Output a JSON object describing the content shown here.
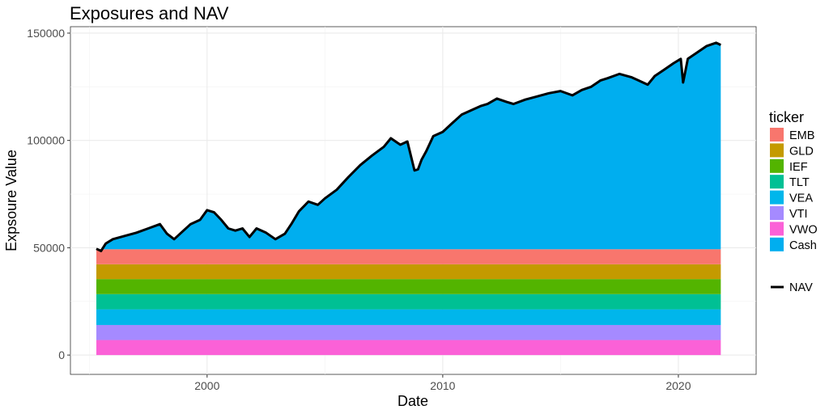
{
  "chart_data": {
    "type": "area",
    "title": "Exposures and NAV",
    "xlabel": "Date",
    "ylabel": "Expsoure Value",
    "xlim": [
      1994.2,
      2023.3
    ],
    "ylim": [
      -9000,
      153000
    ],
    "x_ticks": [
      2000,
      2010,
      2020
    ],
    "x_tick_labels": [
      "2000",
      "2010",
      "2020"
    ],
    "y_ticks": [
      0,
      50000,
      100000,
      150000
    ],
    "y_tick_labels": [
      "0",
      "50000",
      "100000",
      "150000"
    ],
    "grid": true,
    "legend": {
      "position": "right",
      "title": "ticker",
      "entries": [
        "EMB",
        "GLD",
        "IEF",
        "TLT",
        "VEA",
        "VTI",
        "VWO",
        "Cash"
      ],
      "colors": [
        "#F8766D",
        "#C49A00",
        "#53B400",
        "#00C094",
        "#00B6EB",
        "#A58AFF",
        "#FB61D7",
        "#00AEEF"
      ],
      "line_entry": "NAV"
    },
    "x_range": [
      1995.3,
      2021.8
    ],
    "stacked_series": [
      {
        "name": "VWO",
        "value": 7000,
        "color": "#FB61D7"
      },
      {
        "name": "VTI",
        "value": 7000,
        "color": "#A58AFF"
      },
      {
        "name": "VEA",
        "value": 7300,
        "color": "#00B6EB"
      },
      {
        "name": "TLT",
        "value": 7100,
        "color": "#00C094"
      },
      {
        "name": "IEF",
        "value": 7000,
        "color": "#53B400"
      },
      {
        "name": "GLD",
        "value": 6900,
        "color": "#C49A00"
      },
      {
        "name": "EMB",
        "value": 7000,
        "color": "#F8766D"
      }
    ],
    "cash_color": "#00AEEF",
    "nav_color": "#000000",
    "nav": {
      "x": [
        1995.3,
        1995.5,
        1995.7,
        1996.0,
        1996.5,
        1997.0,
        1997.5,
        1998.0,
        1998.3,
        1998.6,
        1998.9,
        1999.3,
        1999.7,
        2000.0,
        2000.3,
        2000.6,
        2000.9,
        2001.2,
        2001.5,
        2001.8,
        2002.1,
        2002.5,
        2002.9,
        2003.3,
        2003.6,
        2003.9,
        2004.3,
        2004.7,
        2005.0,
        2005.5,
        2006.0,
        2006.5,
        2007.0,
        2007.5,
        2007.8,
        2008.2,
        2008.5,
        2008.8,
        2008.95,
        2009.1,
        2009.3,
        2009.6,
        2010.0,
        2010.4,
        2010.8,
        2011.2,
        2011.6,
        2011.9,
        2012.3,
        2012.7,
        2013.0,
        2013.5,
        2014.0,
        2014.5,
        2015.0,
        2015.5,
        2015.9,
        2016.3,
        2016.7,
        2017.0,
        2017.5,
        2018.0,
        2018.3,
        2018.7,
        2019.0,
        2019.4,
        2019.8,
        2020.1,
        2020.2,
        2020.4,
        2020.8,
        2021.2,
        2021.6,
        2021.8
      ],
      "y": [
        49500,
        48500,
        52000,
        54000,
        55500,
        57000,
        59000,
        61000,
        56500,
        54000,
        57000,
        61000,
        63000,
        67500,
        66500,
        63000,
        59000,
        58000,
        59000,
        55000,
        59000,
        57000,
        54000,
        56500,
        61500,
        67000,
        71500,
        70000,
        73000,
        77000,
        83000,
        88500,
        93000,
        97000,
        101000,
        98000,
        99500,
        86000,
        86500,
        91000,
        95000,
        102000,
        104000,
        108000,
        112000,
        114000,
        116000,
        117000,
        119500,
        118000,
        117000,
        119000,
        120500,
        122000,
        123000,
        121000,
        123500,
        125000,
        128000,
        129000,
        131000,
        129500,
        128000,
        126000,
        130000,
        133000,
        136000,
        138000,
        127000,
        138000,
        141000,
        144000,
        145500,
        144500
      ]
    }
  }
}
